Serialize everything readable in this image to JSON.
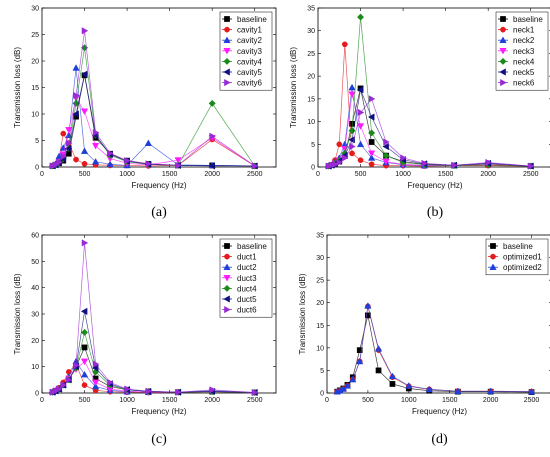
{
  "chart_data": [
    {
      "type": "line",
      "panel_label": "(a)",
      "xlabel": "Frequency (Hz)",
      "ylabel": "Transmission loss (dB)",
      "xlim": [
        0,
        2750
      ],
      "ylim": [
        0,
        30
      ],
      "xticks": [
        0,
        500,
        1000,
        1500,
        2000,
        2500
      ],
      "yticks": [
        0,
        5,
        10,
        15,
        20,
        25,
        30
      ],
      "legend_position": "top-right",
      "series": [
        {
          "name": "baseline",
          "color": "#000000",
          "marker": "square",
          "x": [
            125,
            160,
            200,
            250,
            315,
            400,
            500,
            630,
            800,
            1000,
            1250,
            1600,
            2000,
            2500
          ],
          "y": [
            0.2,
            0.4,
            0.7,
            1.2,
            2.5,
            9.5,
            17.3,
            5.5,
            2.5,
            1.2,
            0.6,
            0.3,
            0.3,
            0.2
          ]
        },
        {
          "name": "cavity1",
          "color": "#e41a1c",
          "marker": "circle",
          "x": [
            125,
            160,
            200,
            250,
            315,
            400,
            500,
            630,
            800,
            1000,
            1250,
            1600,
            2000,
            2500
          ],
          "y": [
            0.2,
            0.5,
            1.5,
            6.3,
            4.5,
            1.4,
            0.6,
            0.4,
            0.3,
            0.3,
            0.2,
            0.3,
            5.2,
            0.2
          ]
        },
        {
          "name": "cavity2",
          "color": "#1f3fd9",
          "marker": "triangle-up",
          "x": [
            125,
            160,
            200,
            250,
            315,
            400,
            500,
            630,
            800,
            1000,
            1250,
            1600,
            2000,
            2500
          ],
          "y": [
            0.2,
            0.6,
            2.0,
            3.6,
            6.0,
            18.7,
            3.0,
            1.0,
            0.5,
            0.3,
            4.5,
            0.4,
            0.3,
            0.2
          ]
        },
        {
          "name": "cavity3",
          "color": "#ff1aff",
          "marker": "triangle-down",
          "x": [
            125,
            160,
            200,
            250,
            315,
            400,
            500,
            630,
            800,
            1000,
            1250,
            1600,
            2000,
            2500
          ],
          "y": [
            0.2,
            0.4,
            1.0,
            2.4,
            7.0,
            13.0,
            10.5,
            4.0,
            1.6,
            0.7,
            0.4,
            1.3,
            5.5,
            0.2
          ]
        },
        {
          "name": "cavity4",
          "color": "#1a8a1a",
          "marker": "diamond",
          "x": [
            125,
            160,
            200,
            250,
            315,
            400,
            500,
            630,
            800,
            1000,
            1250,
            1600,
            2000,
            2500
          ],
          "y": [
            0.2,
            0.4,
            0.8,
            1.5,
            3.5,
            12.0,
            22.5,
            6.0,
            2.2,
            1.0,
            0.5,
            0.3,
            12.0,
            0.2
          ]
        },
        {
          "name": "cavity5",
          "color": "#101080",
          "marker": "triangle-left",
          "x": [
            125,
            160,
            200,
            250,
            315,
            400,
            500,
            630,
            800,
            1000,
            1250,
            1600,
            2000,
            2500
          ],
          "y": [
            0.2,
            0.4,
            0.8,
            1.5,
            3.5,
            10.0,
            17.5,
            6.0,
            2.4,
            1.1,
            0.5,
            0.3,
            0.2,
            0.2
          ]
        },
        {
          "name": "cavity6",
          "color": "#9a2ad6",
          "marker": "triangle-right",
          "x": [
            125,
            160,
            200,
            250,
            315,
            400,
            500,
            630,
            800,
            1000,
            1250,
            1600,
            2000,
            2500
          ],
          "y": [
            0.2,
            0.4,
            0.9,
            2.0,
            4.5,
            13.5,
            25.7,
            6.5,
            2.6,
            1.2,
            0.6,
            0.3,
            5.8,
            0.2
          ]
        }
      ]
    },
    {
      "type": "line",
      "panel_label": "(b)",
      "xlabel": "Frequency (Hz)",
      "ylabel": "Transmission loss (dB)",
      "xlim": [
        0,
        2750
      ],
      "ylim": [
        0,
        35
      ],
      "xticks": [
        0,
        500,
        1000,
        1500,
        2000,
        2500
      ],
      "yticks": [
        0,
        5,
        10,
        15,
        20,
        25,
        30,
        35
      ],
      "legend_position": "top-right",
      "series": [
        {
          "name": "baseline",
          "color": "#000000",
          "marker": "square",
          "x": [
            125,
            160,
            200,
            250,
            315,
            400,
            500,
            630,
            800,
            1000,
            1250,
            1600,
            2000,
            2500
          ],
          "y": [
            0.2,
            0.4,
            0.7,
            1.2,
            2.5,
            9.5,
            17.3,
            5.5,
            2.5,
            1.2,
            0.6,
            0.3,
            0.5,
            0.2
          ]
        },
        {
          "name": "neck1",
          "color": "#e41a1c",
          "marker": "circle",
          "x": [
            125,
            160,
            200,
            250,
            315,
            400,
            500,
            630,
            800,
            1000,
            1250,
            1600,
            2000,
            2500
          ],
          "y": [
            0.2,
            0.5,
            1.5,
            5.0,
            27.0,
            3.0,
            1.5,
            0.6,
            0.3,
            0.3,
            0.2,
            0.3,
            0.3,
            0.2
          ]
        },
        {
          "name": "neck2",
          "color": "#1f3fd9",
          "marker": "triangle-up",
          "x": [
            125,
            160,
            200,
            250,
            315,
            400,
            500,
            630,
            800,
            1000,
            1250,
            1600,
            2000,
            2500
          ],
          "y": [
            0.2,
            0.4,
            1.0,
            2.0,
            5.0,
            17.5,
            5.0,
            2.0,
            1.0,
            0.5,
            0.3,
            0.3,
            0.8,
            0.2
          ]
        },
        {
          "name": "neck3",
          "color": "#ff1aff",
          "marker": "triangle-down",
          "x": [
            125,
            160,
            200,
            250,
            315,
            400,
            500,
            630,
            800,
            1000,
            1250,
            1600,
            2000,
            2500
          ],
          "y": [
            0.2,
            0.4,
            0.8,
            1.5,
            4.0,
            16.0,
            9.0,
            3.0,
            1.2,
            0.6,
            0.3,
            0.3,
            0.6,
            0.2
          ]
        },
        {
          "name": "neck4",
          "color": "#1a8a1a",
          "marker": "diamond",
          "x": [
            125,
            160,
            200,
            250,
            315,
            400,
            500,
            630,
            800,
            1000,
            1250,
            1600,
            2000,
            2500
          ],
          "y": [
            0.2,
            0.4,
            0.8,
            1.5,
            3.0,
            8.0,
            33.0,
            7.5,
            2.5,
            1.0,
            0.5,
            0.3,
            0.5,
            0.2
          ]
        },
        {
          "name": "neck5",
          "color": "#101080",
          "marker": "triangle-left",
          "x": [
            125,
            160,
            200,
            250,
            315,
            400,
            500,
            630,
            800,
            1000,
            1250,
            1600,
            2000,
            2500
          ],
          "y": [
            0.2,
            0.4,
            0.7,
            1.3,
            2.5,
            6.0,
            17.0,
            11.0,
            4.5,
            1.6,
            0.7,
            0.4,
            0.8,
            0.2
          ]
        },
        {
          "name": "neck6",
          "color": "#9a2ad6",
          "marker": "triangle-right",
          "x": [
            125,
            160,
            200,
            250,
            315,
            400,
            500,
            630,
            800,
            1000,
            1250,
            1600,
            2000,
            2500
          ],
          "y": [
            0.2,
            0.4,
            0.6,
            1.0,
            2.0,
            4.5,
            12.0,
            15.0,
            5.5,
            2.0,
            0.8,
            0.4,
            1.0,
            0.2
          ]
        }
      ]
    },
    {
      "type": "line",
      "panel_label": "(c)",
      "xlabel": "Frequency (Hz)",
      "ylabel": "Transmission loss (dB)",
      "xlim": [
        0,
        2750
      ],
      "ylim": [
        0,
        60
      ],
      "xticks": [
        0,
        500,
        1000,
        1500,
        2000,
        2500
      ],
      "yticks": [
        0,
        10,
        20,
        30,
        40,
        50,
        60
      ],
      "legend_position": "top-right",
      "series": [
        {
          "name": "baseline",
          "color": "#000000",
          "marker": "square",
          "x": [
            125,
            160,
            200,
            250,
            315,
            400,
            500,
            630,
            800,
            1000,
            1250,
            1600,
            2000,
            2500
          ],
          "y": [
            0.3,
            0.8,
            1.5,
            3.0,
            5.0,
            10.0,
            17.3,
            5.5,
            2.5,
            1.2,
            0.6,
            0.3,
            0.5,
            0.2
          ]
        },
        {
          "name": "duct1",
          "color": "#e41a1c",
          "marker": "circle",
          "x": [
            125,
            160,
            200,
            250,
            315,
            400,
            500,
            630,
            800,
            1000,
            1250,
            1600,
            2000,
            2500
          ],
          "y": [
            0.3,
            1.0,
            2.0,
            4.0,
            8.0,
            11.0,
            3.0,
            1.0,
            0.5,
            0.3,
            0.2,
            0.3,
            0.5,
            0.2
          ]
        },
        {
          "name": "duct2",
          "color": "#1f3fd9",
          "marker": "triangle-up",
          "x": [
            125,
            160,
            200,
            250,
            315,
            400,
            500,
            630,
            800,
            1000,
            1250,
            1600,
            2000,
            2500
          ],
          "y": [
            0.3,
            0.8,
            1.5,
            3.0,
            6.0,
            12.0,
            7.0,
            2.5,
            1.0,
            0.5,
            0.3,
            0.3,
            0.8,
            0.2
          ]
        },
        {
          "name": "duct3",
          "color": "#ff1aff",
          "marker": "triangle-down",
          "x": [
            125,
            160,
            200,
            250,
            315,
            400,
            500,
            630,
            800,
            1000,
            1250,
            1600,
            2000,
            2500
          ],
          "y": [
            0.3,
            0.8,
            1.5,
            3.0,
            5.5,
            9.0,
            12.0,
            4.0,
            1.5,
            0.7,
            0.3,
            0.3,
            0.6,
            0.2
          ]
        },
        {
          "name": "duct4",
          "color": "#1a8a1a",
          "marker": "diamond",
          "x": [
            125,
            160,
            200,
            250,
            315,
            400,
            500,
            630,
            800,
            1000,
            1250,
            1600,
            2000,
            2500
          ],
          "y": [
            0.3,
            0.8,
            1.5,
            3.0,
            5.0,
            9.5,
            23.0,
            8.0,
            3.0,
            1.2,
            0.6,
            0.3,
            0.5,
            0.2
          ]
        },
        {
          "name": "duct5",
          "color": "#101080",
          "marker": "triangle-left",
          "x": [
            125,
            160,
            200,
            250,
            315,
            400,
            500,
            630,
            800,
            1000,
            1250,
            1600,
            2000,
            2500
          ],
          "y": [
            0.3,
            0.8,
            1.5,
            3.0,
            5.0,
            10.0,
            31.0,
            9.5,
            3.5,
            1.3,
            0.6,
            0.3,
            0.6,
            0.2
          ]
        },
        {
          "name": "duct6",
          "color": "#9a2ad6",
          "marker": "triangle-right",
          "x": [
            125,
            160,
            200,
            250,
            315,
            400,
            500,
            630,
            800,
            1000,
            1250,
            1600,
            2000,
            2500
          ],
          "y": [
            0.3,
            0.8,
            1.5,
            3.0,
            5.0,
            10.5,
            57.0,
            11.0,
            4.0,
            1.5,
            0.7,
            0.3,
            1.2,
            0.2
          ]
        }
      ]
    },
    {
      "type": "line",
      "panel_label": "(d)",
      "xlabel": "Frequency (Hz)",
      "ylabel": "Transmission loss (dB)",
      "xlim": [
        0,
        2750
      ],
      "ylim": [
        0,
        35
      ],
      "xticks": [
        0,
        500,
        1000,
        1500,
        2000,
        2500
      ],
      "yticks": [
        0,
        5,
        10,
        15,
        20,
        25,
        30,
        35
      ],
      "legend_position": "top-right",
      "series": [
        {
          "name": "baseline",
          "color": "#000000",
          "marker": "square",
          "x": [
            125,
            160,
            200,
            250,
            315,
            400,
            500,
            630,
            800,
            1000,
            1250,
            1600,
            2000,
            2500
          ],
          "y": [
            0.3,
            0.6,
            1.0,
            1.8,
            3.5,
            9.5,
            17.2,
            5.0,
            2.0,
            1.0,
            0.5,
            0.3,
            0.3,
            0.2
          ]
        },
        {
          "name": "optimized1",
          "color": "#e41a1c",
          "marker": "circle",
          "x": [
            125,
            160,
            200,
            250,
            315,
            400,
            500,
            630,
            800,
            1000,
            1250,
            1600,
            2000,
            2500
          ],
          "y": [
            0.3,
            0.5,
            0.9,
            1.6,
            3.0,
            7.0,
            19.2,
            9.5,
            3.5,
            1.5,
            0.8,
            0.4,
            0.4,
            0.3
          ]
        },
        {
          "name": "optimized2",
          "color": "#1f3fd9",
          "marker": "triangle-up",
          "x": [
            125,
            160,
            200,
            250,
            315,
            400,
            500,
            630,
            800,
            1000,
            1250,
            1600,
            2000,
            2500
          ],
          "y": [
            0.3,
            0.5,
            0.9,
            1.6,
            3.0,
            7.0,
            19.3,
            9.8,
            3.7,
            1.6,
            0.8,
            0.4,
            0.4,
            0.3
          ]
        }
      ]
    }
  ]
}
